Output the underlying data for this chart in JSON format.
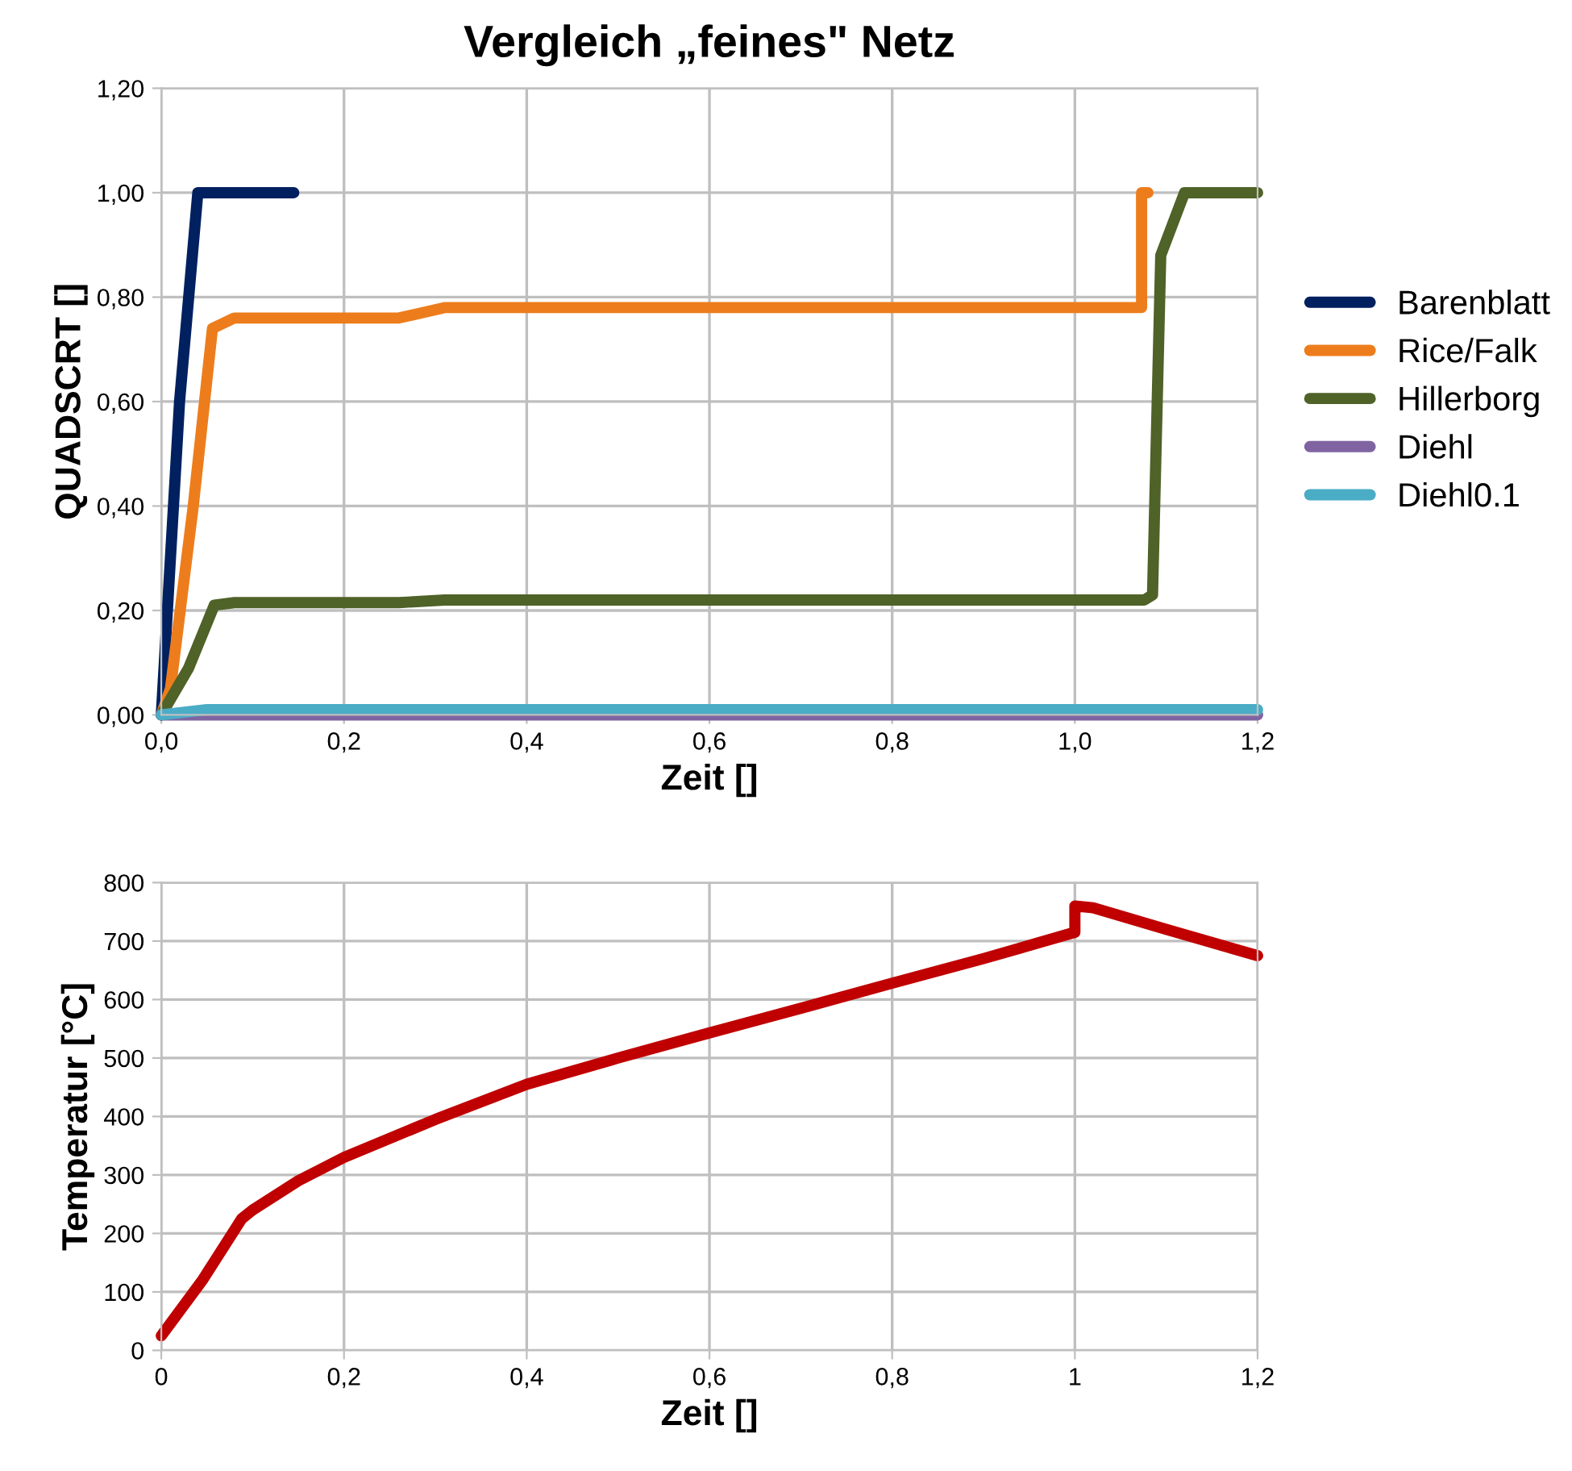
{
  "chart_data": [
    {
      "type": "line",
      "title": "Vergleich „feines\" Netz",
      "xlabel": "Zeit []",
      "ylabel": "QUADSCRT []",
      "xlim": [
        0,
        1.2
      ],
      "ylim": [
        0,
        1.2
      ],
      "xticks": [
        {
          "value": 0,
          "label": "0,0"
        },
        {
          "value": 0.2,
          "label": "0,2"
        },
        {
          "value": 0.4,
          "label": "0,4"
        },
        {
          "value": 0.6,
          "label": "0,6"
        },
        {
          "value": 0.8,
          "label": "0,8"
        },
        {
          "value": 1.0,
          "label": "1,0"
        },
        {
          "value": 1.2,
          "label": "1,2"
        }
      ],
      "yticks": [
        {
          "value": 0,
          "label": "0,00"
        },
        {
          "value": 0.2,
          "label": "0,20"
        },
        {
          "value": 0.4,
          "label": "0,40"
        },
        {
          "value": 0.6,
          "label": "0,60"
        },
        {
          "value": 0.8,
          "label": "0,80"
        },
        {
          "value": 1.0,
          "label": "1,00"
        },
        {
          "value": 1.2,
          "label": "1,20"
        }
      ],
      "grid": true,
      "legend": "right",
      "marker": "none",
      "line_style": "solid",
      "series": [
        {
          "name": "Barenblatt",
          "color": "#002060",
          "x": [
            0,
            0.02,
            0.04,
            0.145
          ],
          "values": [
            0,
            0.6,
            1.0,
            1.0
          ]
        },
        {
          "name": "Rice/Falk",
          "color": "#ed7d1c",
          "x": [
            0,
            0.01,
            0.035,
            0.056,
            0.08,
            0.26,
            0.31,
            1.073,
            1.073,
            1.08
          ],
          "values": [
            0,
            0.05,
            0.4,
            0.74,
            0.76,
            0.76,
            0.78,
            0.78,
            1.0,
            1.0
          ]
        },
        {
          "name": "Hillerborg",
          "color": "#4f6228",
          "x": [
            0,
            0.03,
            0.058,
            0.08,
            0.26,
            0.31,
            1.076,
            1.085,
            1.094,
            1.12,
            1.2
          ],
          "values": [
            0,
            0.09,
            0.21,
            0.215,
            0.215,
            0.22,
            0.22,
            0.23,
            0.88,
            1.0,
            1.0
          ]
        },
        {
          "name": "Diehl",
          "color": "#8064a2",
          "x": [
            0,
            1.2
          ],
          "values": [
            0,
            0
          ]
        },
        {
          "name": "Diehl0.1",
          "color": "#4bacc6",
          "x": [
            0,
            0.05,
            1.2
          ],
          "values": [
            0,
            0.01,
            0.01
          ]
        }
      ]
    },
    {
      "type": "line",
      "xlabel": "Zeit []",
      "ylabel": "Temperatur [°C]",
      "xlim": [
        0,
        1.2
      ],
      "ylim": [
        0,
        800
      ],
      "xticks": [
        0,
        {
          "value": 0.2,
          "label": "0,2"
        },
        {
          "value": 0.4,
          "label": "0,4"
        },
        {
          "value": 0.6,
          "label": "0,6"
        },
        {
          "value": 0.8,
          "label": "0,8"
        },
        1,
        {
          "value": 1.2,
          "label": "1,2"
        }
      ],
      "yticks": [
        0,
        100,
        200,
        300,
        400,
        500,
        600,
        700,
        800
      ],
      "grid": true,
      "marker": "none",
      "line_style": "solid",
      "series": [
        {
          "color": "#c00000",
          "x": [
            0,
            0.045,
            0.088,
            0.1,
            0.15,
            0.2,
            0.3,
            0.4,
            0.5,
            0.6,
            0.7,
            0.8,
            0.9,
            1.0,
            1.0,
            1.02,
            1.1,
            1.2
          ],
          "values": [
            25,
            120,
            225,
            240,
            290,
            330,
            395,
            455,
            500,
            543,
            585,
            628,
            670,
            715,
            760,
            757,
            720,
            675
          ]
        }
      ]
    }
  ]
}
